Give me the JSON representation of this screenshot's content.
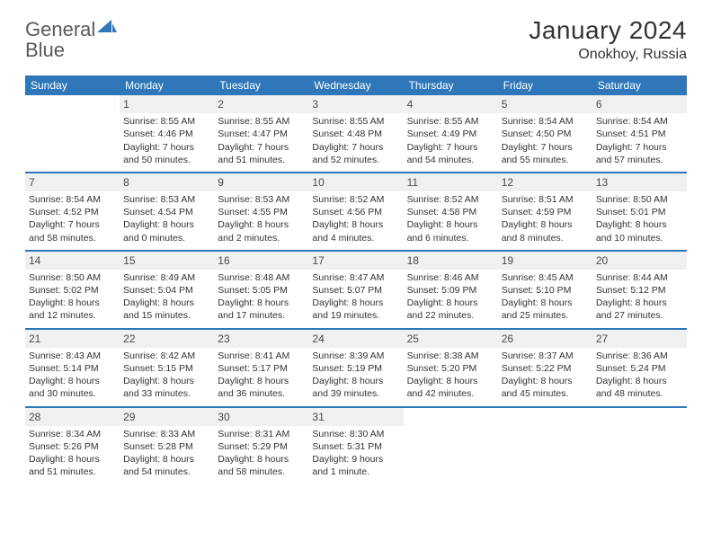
{
  "brand": {
    "part1": "General",
    "part2": "Blue"
  },
  "title": "January 2024",
  "location": "Onokhoy, Russia",
  "colors": {
    "header_bg": "#2f77b9",
    "header_text": "#ffffff",
    "daynum_bg": "#eef0f1",
    "rule": "#2f77b9",
    "text": "#333333",
    "logo_gray": "#5a5a5a",
    "logo_blue": "#2f77b9",
    "page_bg": "#ffffff"
  },
  "dow": [
    "Sunday",
    "Monday",
    "Tuesday",
    "Wednesday",
    "Thursday",
    "Friday",
    "Saturday"
  ],
  "weeks": [
    [
      null,
      {
        "n": "1",
        "sr": "Sunrise: 8:55 AM",
        "ss": "Sunset: 4:46 PM",
        "d1": "Daylight: 7 hours",
        "d2": "and 50 minutes."
      },
      {
        "n": "2",
        "sr": "Sunrise: 8:55 AM",
        "ss": "Sunset: 4:47 PM",
        "d1": "Daylight: 7 hours",
        "d2": "and 51 minutes."
      },
      {
        "n": "3",
        "sr": "Sunrise: 8:55 AM",
        "ss": "Sunset: 4:48 PM",
        "d1": "Daylight: 7 hours",
        "d2": "and 52 minutes."
      },
      {
        "n": "4",
        "sr": "Sunrise: 8:55 AM",
        "ss": "Sunset: 4:49 PM",
        "d1": "Daylight: 7 hours",
        "d2": "and 54 minutes."
      },
      {
        "n": "5",
        "sr": "Sunrise: 8:54 AM",
        "ss": "Sunset: 4:50 PM",
        "d1": "Daylight: 7 hours",
        "d2": "and 55 minutes."
      },
      {
        "n": "6",
        "sr": "Sunrise: 8:54 AM",
        "ss": "Sunset: 4:51 PM",
        "d1": "Daylight: 7 hours",
        "d2": "and 57 minutes."
      }
    ],
    [
      {
        "n": "7",
        "sr": "Sunrise: 8:54 AM",
        "ss": "Sunset: 4:52 PM",
        "d1": "Daylight: 7 hours",
        "d2": "and 58 minutes."
      },
      {
        "n": "8",
        "sr": "Sunrise: 8:53 AM",
        "ss": "Sunset: 4:54 PM",
        "d1": "Daylight: 8 hours",
        "d2": "and 0 minutes."
      },
      {
        "n": "9",
        "sr": "Sunrise: 8:53 AM",
        "ss": "Sunset: 4:55 PM",
        "d1": "Daylight: 8 hours",
        "d2": "and 2 minutes."
      },
      {
        "n": "10",
        "sr": "Sunrise: 8:52 AM",
        "ss": "Sunset: 4:56 PM",
        "d1": "Daylight: 8 hours",
        "d2": "and 4 minutes."
      },
      {
        "n": "11",
        "sr": "Sunrise: 8:52 AM",
        "ss": "Sunset: 4:58 PM",
        "d1": "Daylight: 8 hours",
        "d2": "and 6 minutes."
      },
      {
        "n": "12",
        "sr": "Sunrise: 8:51 AM",
        "ss": "Sunset: 4:59 PM",
        "d1": "Daylight: 8 hours",
        "d2": "and 8 minutes."
      },
      {
        "n": "13",
        "sr": "Sunrise: 8:50 AM",
        "ss": "Sunset: 5:01 PM",
        "d1": "Daylight: 8 hours",
        "d2": "and 10 minutes."
      }
    ],
    [
      {
        "n": "14",
        "sr": "Sunrise: 8:50 AM",
        "ss": "Sunset: 5:02 PM",
        "d1": "Daylight: 8 hours",
        "d2": "and 12 minutes."
      },
      {
        "n": "15",
        "sr": "Sunrise: 8:49 AM",
        "ss": "Sunset: 5:04 PM",
        "d1": "Daylight: 8 hours",
        "d2": "and 15 minutes."
      },
      {
        "n": "16",
        "sr": "Sunrise: 8:48 AM",
        "ss": "Sunset: 5:05 PM",
        "d1": "Daylight: 8 hours",
        "d2": "and 17 minutes."
      },
      {
        "n": "17",
        "sr": "Sunrise: 8:47 AM",
        "ss": "Sunset: 5:07 PM",
        "d1": "Daylight: 8 hours",
        "d2": "and 19 minutes."
      },
      {
        "n": "18",
        "sr": "Sunrise: 8:46 AM",
        "ss": "Sunset: 5:09 PM",
        "d1": "Daylight: 8 hours",
        "d2": "and 22 minutes."
      },
      {
        "n": "19",
        "sr": "Sunrise: 8:45 AM",
        "ss": "Sunset: 5:10 PM",
        "d1": "Daylight: 8 hours",
        "d2": "and 25 minutes."
      },
      {
        "n": "20",
        "sr": "Sunrise: 8:44 AM",
        "ss": "Sunset: 5:12 PM",
        "d1": "Daylight: 8 hours",
        "d2": "and 27 minutes."
      }
    ],
    [
      {
        "n": "21",
        "sr": "Sunrise: 8:43 AM",
        "ss": "Sunset: 5:14 PM",
        "d1": "Daylight: 8 hours",
        "d2": "and 30 minutes."
      },
      {
        "n": "22",
        "sr": "Sunrise: 8:42 AM",
        "ss": "Sunset: 5:15 PM",
        "d1": "Daylight: 8 hours",
        "d2": "and 33 minutes."
      },
      {
        "n": "23",
        "sr": "Sunrise: 8:41 AM",
        "ss": "Sunset: 5:17 PM",
        "d1": "Daylight: 8 hours",
        "d2": "and 36 minutes."
      },
      {
        "n": "24",
        "sr": "Sunrise: 8:39 AM",
        "ss": "Sunset: 5:19 PM",
        "d1": "Daylight: 8 hours",
        "d2": "and 39 minutes."
      },
      {
        "n": "25",
        "sr": "Sunrise: 8:38 AM",
        "ss": "Sunset: 5:20 PM",
        "d1": "Daylight: 8 hours",
        "d2": "and 42 minutes."
      },
      {
        "n": "26",
        "sr": "Sunrise: 8:37 AM",
        "ss": "Sunset: 5:22 PM",
        "d1": "Daylight: 8 hours",
        "d2": "and 45 minutes."
      },
      {
        "n": "27",
        "sr": "Sunrise: 8:36 AM",
        "ss": "Sunset: 5:24 PM",
        "d1": "Daylight: 8 hours",
        "d2": "and 48 minutes."
      }
    ],
    [
      {
        "n": "28",
        "sr": "Sunrise: 8:34 AM",
        "ss": "Sunset: 5:26 PM",
        "d1": "Daylight: 8 hours",
        "d2": "and 51 minutes."
      },
      {
        "n": "29",
        "sr": "Sunrise: 8:33 AM",
        "ss": "Sunset: 5:28 PM",
        "d1": "Daylight: 8 hours",
        "d2": "and 54 minutes."
      },
      {
        "n": "30",
        "sr": "Sunrise: 8:31 AM",
        "ss": "Sunset: 5:29 PM",
        "d1": "Daylight: 8 hours",
        "d2": "and 58 minutes."
      },
      {
        "n": "31",
        "sr": "Sunrise: 8:30 AM",
        "ss": "Sunset: 5:31 PM",
        "d1": "Daylight: 9 hours",
        "d2": "and 1 minute."
      },
      null,
      null,
      null
    ]
  ]
}
